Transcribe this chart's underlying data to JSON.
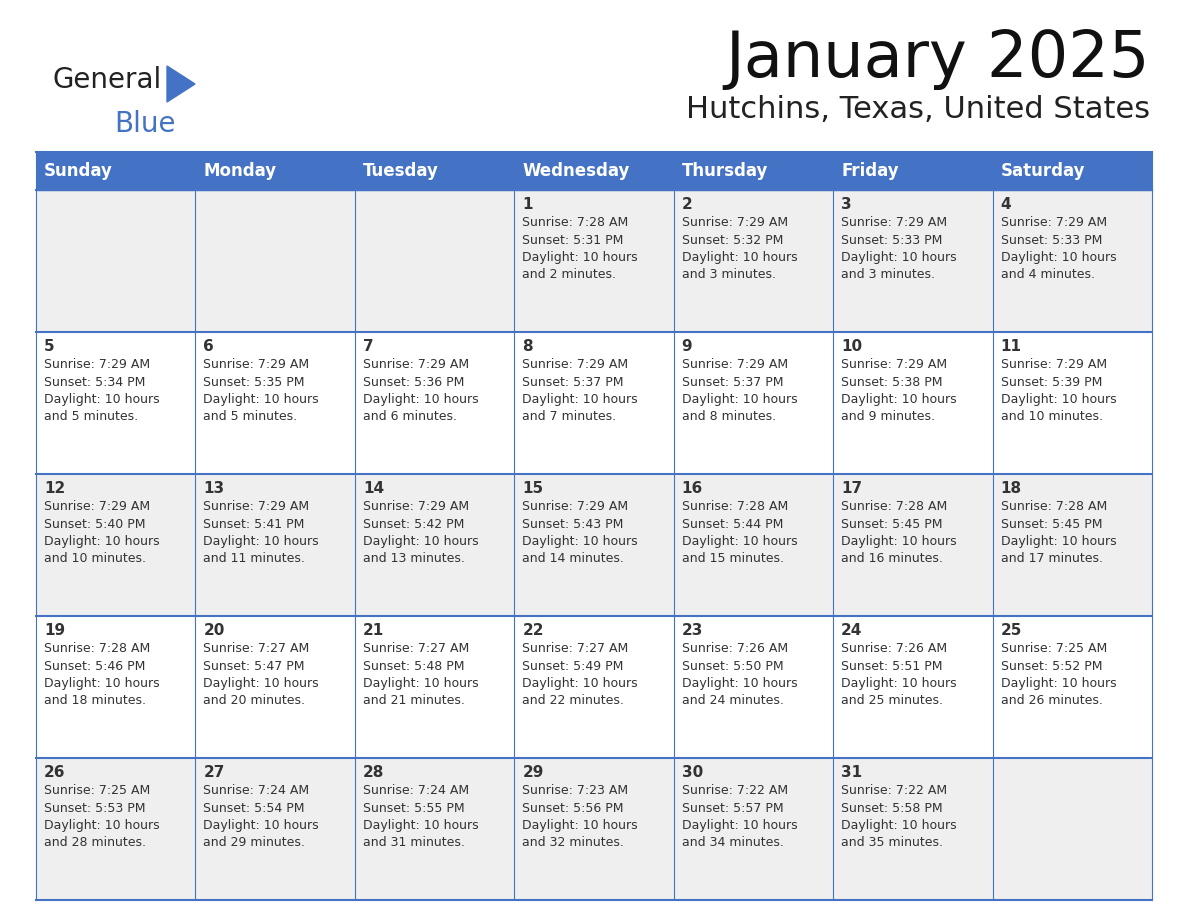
{
  "title": "January 2025",
  "subtitle": "Hutchins, Texas, United States",
  "header_color": "#4472C4",
  "header_text_color": "#FFFFFF",
  "cell_bg_even": "#EFEFEF",
  "cell_bg_odd": "#FFFFFF",
  "text_color": "#333333",
  "border_color": "#4472C4",
  "days_of_week": [
    "Sunday",
    "Monday",
    "Tuesday",
    "Wednesday",
    "Thursday",
    "Friday",
    "Saturday"
  ],
  "weeks": [
    [
      {
        "day": "",
        "text": ""
      },
      {
        "day": "",
        "text": ""
      },
      {
        "day": "",
        "text": ""
      },
      {
        "day": "1",
        "text": "Sunrise: 7:28 AM\nSunset: 5:31 PM\nDaylight: 10 hours\nand 2 minutes."
      },
      {
        "day": "2",
        "text": "Sunrise: 7:29 AM\nSunset: 5:32 PM\nDaylight: 10 hours\nand 3 minutes."
      },
      {
        "day": "3",
        "text": "Sunrise: 7:29 AM\nSunset: 5:33 PM\nDaylight: 10 hours\nand 3 minutes."
      },
      {
        "day": "4",
        "text": "Sunrise: 7:29 AM\nSunset: 5:33 PM\nDaylight: 10 hours\nand 4 minutes."
      }
    ],
    [
      {
        "day": "5",
        "text": "Sunrise: 7:29 AM\nSunset: 5:34 PM\nDaylight: 10 hours\nand 5 minutes."
      },
      {
        "day": "6",
        "text": "Sunrise: 7:29 AM\nSunset: 5:35 PM\nDaylight: 10 hours\nand 5 minutes."
      },
      {
        "day": "7",
        "text": "Sunrise: 7:29 AM\nSunset: 5:36 PM\nDaylight: 10 hours\nand 6 minutes."
      },
      {
        "day": "8",
        "text": "Sunrise: 7:29 AM\nSunset: 5:37 PM\nDaylight: 10 hours\nand 7 minutes."
      },
      {
        "day": "9",
        "text": "Sunrise: 7:29 AM\nSunset: 5:37 PM\nDaylight: 10 hours\nand 8 minutes."
      },
      {
        "day": "10",
        "text": "Sunrise: 7:29 AM\nSunset: 5:38 PM\nDaylight: 10 hours\nand 9 minutes."
      },
      {
        "day": "11",
        "text": "Sunrise: 7:29 AM\nSunset: 5:39 PM\nDaylight: 10 hours\nand 10 minutes."
      }
    ],
    [
      {
        "day": "12",
        "text": "Sunrise: 7:29 AM\nSunset: 5:40 PM\nDaylight: 10 hours\nand 10 minutes."
      },
      {
        "day": "13",
        "text": "Sunrise: 7:29 AM\nSunset: 5:41 PM\nDaylight: 10 hours\nand 11 minutes."
      },
      {
        "day": "14",
        "text": "Sunrise: 7:29 AM\nSunset: 5:42 PM\nDaylight: 10 hours\nand 13 minutes."
      },
      {
        "day": "15",
        "text": "Sunrise: 7:29 AM\nSunset: 5:43 PM\nDaylight: 10 hours\nand 14 minutes."
      },
      {
        "day": "16",
        "text": "Sunrise: 7:28 AM\nSunset: 5:44 PM\nDaylight: 10 hours\nand 15 minutes."
      },
      {
        "day": "17",
        "text": "Sunrise: 7:28 AM\nSunset: 5:45 PM\nDaylight: 10 hours\nand 16 minutes."
      },
      {
        "day": "18",
        "text": "Sunrise: 7:28 AM\nSunset: 5:45 PM\nDaylight: 10 hours\nand 17 minutes."
      }
    ],
    [
      {
        "day": "19",
        "text": "Sunrise: 7:28 AM\nSunset: 5:46 PM\nDaylight: 10 hours\nand 18 minutes."
      },
      {
        "day": "20",
        "text": "Sunrise: 7:27 AM\nSunset: 5:47 PM\nDaylight: 10 hours\nand 20 minutes."
      },
      {
        "day": "21",
        "text": "Sunrise: 7:27 AM\nSunset: 5:48 PM\nDaylight: 10 hours\nand 21 minutes."
      },
      {
        "day": "22",
        "text": "Sunrise: 7:27 AM\nSunset: 5:49 PM\nDaylight: 10 hours\nand 22 minutes."
      },
      {
        "day": "23",
        "text": "Sunrise: 7:26 AM\nSunset: 5:50 PM\nDaylight: 10 hours\nand 24 minutes."
      },
      {
        "day": "24",
        "text": "Sunrise: 7:26 AM\nSunset: 5:51 PM\nDaylight: 10 hours\nand 25 minutes."
      },
      {
        "day": "25",
        "text": "Sunrise: 7:25 AM\nSunset: 5:52 PM\nDaylight: 10 hours\nand 26 minutes."
      }
    ],
    [
      {
        "day": "26",
        "text": "Sunrise: 7:25 AM\nSunset: 5:53 PM\nDaylight: 10 hours\nand 28 minutes."
      },
      {
        "day": "27",
        "text": "Sunrise: 7:24 AM\nSunset: 5:54 PM\nDaylight: 10 hours\nand 29 minutes."
      },
      {
        "day": "28",
        "text": "Sunrise: 7:24 AM\nSunset: 5:55 PM\nDaylight: 10 hours\nand 31 minutes."
      },
      {
        "day": "29",
        "text": "Sunrise: 7:23 AM\nSunset: 5:56 PM\nDaylight: 10 hours\nand 32 minutes."
      },
      {
        "day": "30",
        "text": "Sunrise: 7:22 AM\nSunset: 5:57 PM\nDaylight: 10 hours\nand 34 minutes."
      },
      {
        "day": "31",
        "text": "Sunrise: 7:22 AM\nSunset: 5:58 PM\nDaylight: 10 hours\nand 35 minutes."
      },
      {
        "day": "",
        "text": ""
      }
    ]
  ],
  "logo_text_general": "General",
  "logo_text_blue": "Blue",
  "logo_color_general": "#222222",
  "logo_color_blue": "#4472C4",
  "logo_triangle_color": "#4472C4"
}
